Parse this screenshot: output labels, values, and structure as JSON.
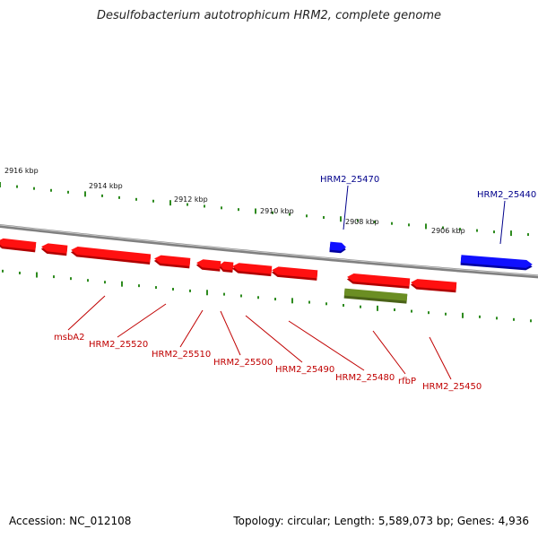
{
  "title": "Desulfobacterium autotrophicum HRM2, complete genome",
  "footer": {
    "accession": "Accession: NC_012108",
    "topology": "Topology: circular; Length: 5,589,073 bp; Genes: 4,936"
  },
  "colors": {
    "backbone": "#808080",
    "ticks": "#2e8b1f",
    "forward_gene": "#1010ff",
    "forward_gene_dark": "#0000a0",
    "reverse_gene": "#ff1010",
    "reverse_gene_dark": "#b00000",
    "rna_gene": "#6b8e23",
    "rna_gene_dark": "#4a6218",
    "forward_label": "#00008b",
    "reverse_label": "#c00000",
    "kbp_label": "#111111"
  },
  "kbp_markers": [
    "2916 kbp",
    "2914 kbp",
    "2912 kbp",
    "2910 kbp",
    "2908 kbp",
    "2906 kbp"
  ],
  "forward_genes": [
    {
      "label": "HRM2_25470",
      "kind": "cds"
    },
    {
      "label": "HRM2_25440",
      "kind": "cds"
    }
  ],
  "reverse_genes": [
    {
      "label": "msbA2",
      "kind": "cds"
    },
    {
      "label": "HRM2_25520",
      "kind": "cds"
    },
    {
      "label": "HRM2_25510",
      "kind": "cds"
    },
    {
      "label": "HRM2_25500",
      "kind": "cds"
    },
    {
      "label": "HRM2_25490",
      "kind": "cds"
    },
    {
      "label": "HRM2_25480",
      "kind": "cds"
    },
    {
      "label": "rfbP",
      "kind": "rna"
    },
    {
      "label": "HRM2_25450",
      "kind": "cds"
    }
  ]
}
